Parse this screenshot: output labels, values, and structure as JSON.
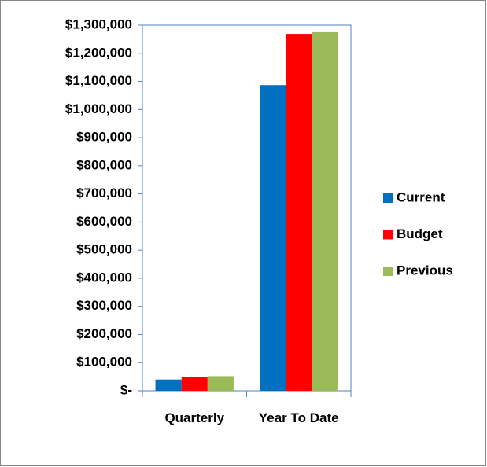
{
  "chart_data": {
    "type": "bar",
    "categories": [
      "Quarterly",
      "Year To Date"
    ],
    "series": [
      {
        "name": "Current",
        "color": "#0070c0",
        "values": [
          40000,
          1087000
        ]
      },
      {
        "name": "Budget",
        "color": "#ff0000",
        "values": [
          48000,
          1269000
        ]
      },
      {
        "name": "Previous",
        "color": "#9bbb59",
        "values": [
          52000,
          1275000
        ]
      }
    ],
    "ylim": [
      0,
      1300000
    ],
    "yticks": [
      {
        "value": 0,
        "label": "$-"
      },
      {
        "value": 100000,
        "label": "$100,000"
      },
      {
        "value": 200000,
        "label": "$200,000"
      },
      {
        "value": 300000,
        "label": "$300,000"
      },
      {
        "value": 400000,
        "label": "$400,000"
      },
      {
        "value": 500000,
        "label": "$500,000"
      },
      {
        "value": 600000,
        "label": "$600,000"
      },
      {
        "value": 700000,
        "label": "$700,000"
      },
      {
        "value": 800000,
        "label": "$800,000"
      },
      {
        "value": 900000,
        "label": "$900,000"
      },
      {
        "value": 1000000,
        "label": "$1,000,000"
      },
      {
        "value": 1100000,
        "label": "$1,100,000"
      },
      {
        "value": 1200000,
        "label": "$1,200,000"
      },
      {
        "value": 1300000,
        "label": "$1,300,000"
      }
    ],
    "legend": "right"
  }
}
